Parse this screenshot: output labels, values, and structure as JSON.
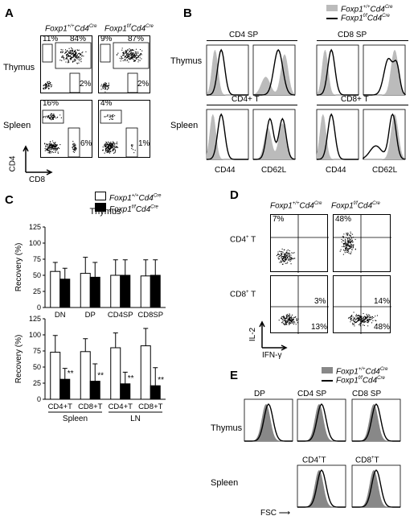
{
  "panels": {
    "A": {
      "letter": "A",
      "col_headers": [
        "Foxp1+/+Cd4Cre",
        "Foxp1f/fCd4Cre"
      ],
      "row_labels": [
        "Thymus",
        "Spleen"
      ],
      "thymus_wt": {
        "tl": "11%",
        "tr": "84%",
        "br": "2%"
      },
      "thymus_ko": {
        "tl": "9%",
        "tr": "87%",
        "br": "2%"
      },
      "spleen_wt": {
        "tl": "16%",
        "br": "6%"
      },
      "spleen_ko": {
        "tl": "4%",
        "br": "1%"
      },
      "y_axis": "CD4",
      "x_axis": "CD8"
    },
    "B": {
      "letter": "B",
      "legend": [
        "Foxp1+/+Cd4Cre",
        "Foxp1f/fCd4Cre"
      ],
      "row_labels": [
        "Thymus",
        "Spleen"
      ],
      "group_headers": [
        "CD4 SP",
        "CD8 SP",
        "CD4+ T",
        "CD8+ T"
      ],
      "x_labels": [
        "CD44",
        "CD62L",
        "CD44",
        "CD62L"
      ]
    },
    "C": {
      "letter": "C",
      "legend": [
        "Foxp1+/+Cd4Cre",
        "Foxp1f/fCd4Cre"
      ],
      "top_title": "Thymus",
      "ylabel": "Recovery (%)",
      "yticks": [
        "0",
        "25",
        "50",
        "75",
        "100",
        "125"
      ],
      "top_categories": [
        "DN",
        "DP",
        "CD4SP",
        "CD8SP"
      ],
      "bottom_categories": [
        "CD4+T",
        "CD8+T",
        "CD4+T",
        "CD8+T"
      ],
      "bottom_groups": [
        "Spleen",
        "LN"
      ],
      "significance": "**"
    },
    "D": {
      "letter": "D",
      "col_headers": [
        "Foxp1+/+Cd4Cre",
        "Foxp1f/fCd4Cre"
      ],
      "row_labels": [
        "CD4+ T",
        "CD8+ T"
      ],
      "cd4_wt": "7%",
      "cd4_ko": "48%",
      "cd8_wt_tr": "3%",
      "cd8_wt_br": "13%",
      "cd8_ko_tr": "14%",
      "cd8_ko_br": "48%",
      "y_axis": "IL-2",
      "x_axis": "IFN-γ"
    },
    "E": {
      "letter": "E",
      "legend": [
        "Foxp1+/+Cd4Cre",
        "Foxp1f/fCd4Cre"
      ],
      "row_labels": [
        "Thymus",
        "Spleen"
      ],
      "headers": [
        "DP",
        "CD4 SP",
        "CD8 SP",
        "CD4+T",
        "CD8+T"
      ],
      "x_axis": "FSC"
    }
  },
  "chart_data": {
    "type": "bar",
    "title": "Thymus",
    "ylabel": "Recovery (%)",
    "ylim": [
      0,
      125
    ],
    "categories": [
      "DN",
      "DP",
      "CD4SP",
      "CD8SP"
    ],
    "series": [
      {
        "name": "Foxp1+/+Cd4Cre",
        "values": [
          56,
          53,
          50,
          49
        ],
        "errors": [
          14,
          25,
          24,
          25
        ]
      },
      {
        "name": "Foxp1f/fCd4Cre",
        "values": [
          44,
          47,
          50,
          50
        ],
        "errors": [
          17,
          23,
          24,
          24
        ]
      }
    ],
    "second_chart": {
      "type": "bar",
      "ylabel": "Recovery (%)",
      "ylim": [
        0,
        125
      ],
      "categories": [
        "CD4+T Spleen",
        "CD8+T Spleen",
        "CD4+T LN",
        "CD8+T LN"
      ],
      "series": [
        {
          "name": "Foxp1+/+Cd4Cre",
          "values": [
            73,
            74,
            80,
            83
          ],
          "errors": [
            26,
            20,
            23,
            27
          ]
        },
        {
          "name": "Foxp1f/fCd4Cre",
          "values": [
            31,
            28,
            24,
            21
          ],
          "errors": [
            17,
            27,
            18,
            28
          ]
        }
      ]
    }
  }
}
